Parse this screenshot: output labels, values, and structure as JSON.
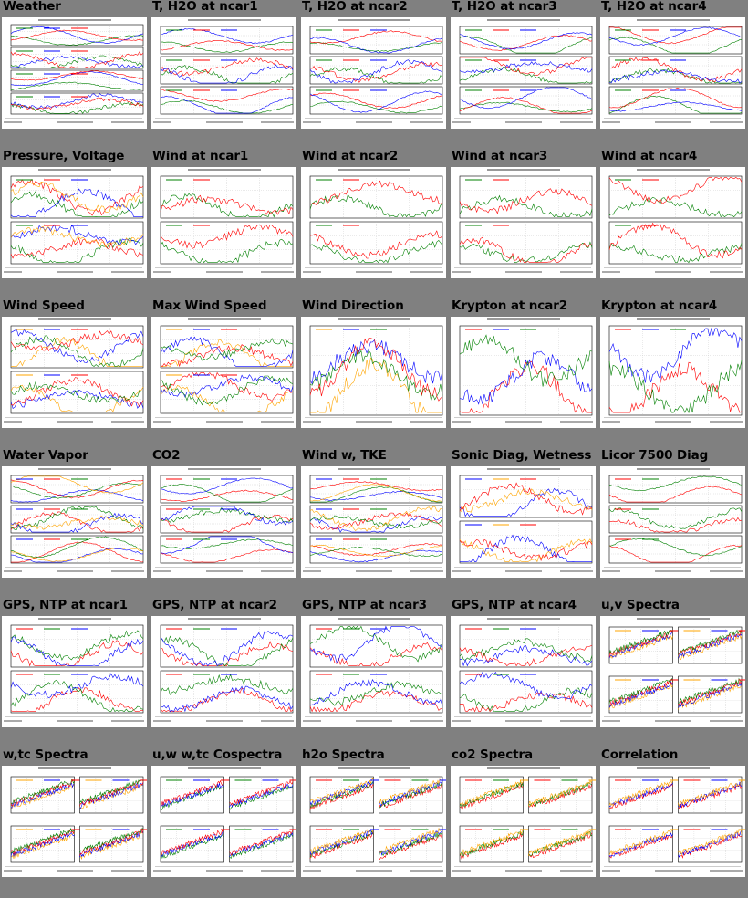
{
  "tiles": [
    {
      "title": "Weather",
      "kind": "multi4",
      "colors": [
        "#008000",
        "#0000ff",
        "#ff0000"
      ]
    },
    {
      "title": "T, H2O at ncar1",
      "kind": "three",
      "colors": [
        "#008000",
        "#ff0000",
        "#0000ff"
      ]
    },
    {
      "title": "T, H2O at ncar2",
      "kind": "three",
      "colors": [
        "#008000",
        "#ff0000",
        "#0000ff"
      ]
    },
    {
      "title": "T, H2O at ncar3",
      "kind": "three",
      "colors": [
        "#008000",
        "#ff0000",
        "#0000ff"
      ]
    },
    {
      "title": "T, H2O at ncar4",
      "kind": "three",
      "colors": [
        "#008000",
        "#ff0000",
        "#0000ff"
      ]
    },
    {
      "title": "Pressure, Voltage",
      "kind": "two",
      "colors": [
        "#008000",
        "#ff0000",
        "#0000ff",
        "#ffa500"
      ]
    },
    {
      "title": "Wind at ncar1",
      "kind": "two",
      "colors": [
        "#008000",
        "#ff0000"
      ]
    },
    {
      "title": "Wind at ncar2",
      "kind": "two",
      "colors": [
        "#008000",
        "#ff0000"
      ]
    },
    {
      "title": "Wind at ncar3",
      "kind": "two",
      "colors": [
        "#008000",
        "#ff0000"
      ]
    },
    {
      "title": "Wind at ncar4",
      "kind": "two",
      "colors": [
        "#008000",
        "#ff0000"
      ]
    },
    {
      "title": "Wind Speed",
      "kind": "two",
      "colors": [
        "#ffa500",
        "#0000ff",
        "#ff0000",
        "#008000"
      ]
    },
    {
      "title": "Max Wind Speed",
      "kind": "two",
      "colors": [
        "#ffa500",
        "#0000ff",
        "#ff0000",
        "#008000"
      ]
    },
    {
      "title": "Wind Direction",
      "kind": "one",
      "colors": [
        "#ffa500",
        "#0000ff",
        "#008000",
        "#ff0000"
      ]
    },
    {
      "title": "Krypton at ncar2",
      "kind": "one",
      "colors": [
        "#ff0000",
        "#0000ff",
        "#008000"
      ]
    },
    {
      "title": "Krypton at ncar4",
      "kind": "one",
      "colors": [
        "#ff0000",
        "#0000ff",
        "#008000"
      ]
    },
    {
      "title": "Water Vapor",
      "kind": "three",
      "colors": [
        "#0000ff",
        "#ff0000",
        "#008000",
        "#ffa500"
      ]
    },
    {
      "title": "CO2",
      "kind": "three",
      "colors": [
        "#ff0000",
        "#008000",
        "#0000ff"
      ]
    },
    {
      "title": "Wind w, TKE",
      "kind": "three",
      "colors": [
        "#0000ff",
        "#ff0000",
        "#008000",
        "#ffa500"
      ]
    },
    {
      "title": "Sonic Diag, Wetness",
      "kind": "two",
      "colors": [
        "#0000ff",
        "#ffa500",
        "#ff0000"
      ]
    },
    {
      "title": "Licor 7500 Diag",
      "kind": "three",
      "colors": [
        "#ff0000",
        "#008000"
      ]
    },
    {
      "title": "GPS, NTP at ncar1",
      "kind": "two",
      "colors": [
        "#ff0000",
        "#008000",
        "#0000ff"
      ]
    },
    {
      "title": "GPS, NTP at ncar2",
      "kind": "two",
      "colors": [
        "#ff0000",
        "#008000",
        "#0000ff"
      ]
    },
    {
      "title": "GPS, NTP at ncar3",
      "kind": "two",
      "colors": [
        "#ff0000",
        "#008000",
        "#0000ff"
      ]
    },
    {
      "title": "GPS, NTP at ncar4",
      "kind": "two",
      "colors": [
        "#ff0000",
        "#008000",
        "#0000ff"
      ]
    },
    {
      "title": "u,v Spectra",
      "kind": "quad",
      "colors": [
        "#ffa500",
        "#0000ff",
        "#ff0000",
        "#008000"
      ]
    },
    {
      "title": "w,tc Spectra",
      "kind": "quad",
      "colors": [
        "#ffa500",
        "#0000ff",
        "#ff0000",
        "#008000"
      ]
    },
    {
      "title": "u,w w,tc Cospectra",
      "kind": "quad",
      "colors": [
        "#008000",
        "#0000ff",
        "#ff0000"
      ]
    },
    {
      "title": "h2o Spectra",
      "kind": "quad",
      "colors": [
        "#ff0000",
        "#008000",
        "#0000ff",
        "#ffa500"
      ]
    },
    {
      "title": "co2 Spectra",
      "kind": "quad",
      "colors": [
        "#ff0000",
        "#008000",
        "#ffa500"
      ]
    },
    {
      "title": "Correlation",
      "kind": "quad",
      "colors": [
        "#ff0000",
        "#0000ff",
        "#ffa500"
      ]
    }
  ]
}
